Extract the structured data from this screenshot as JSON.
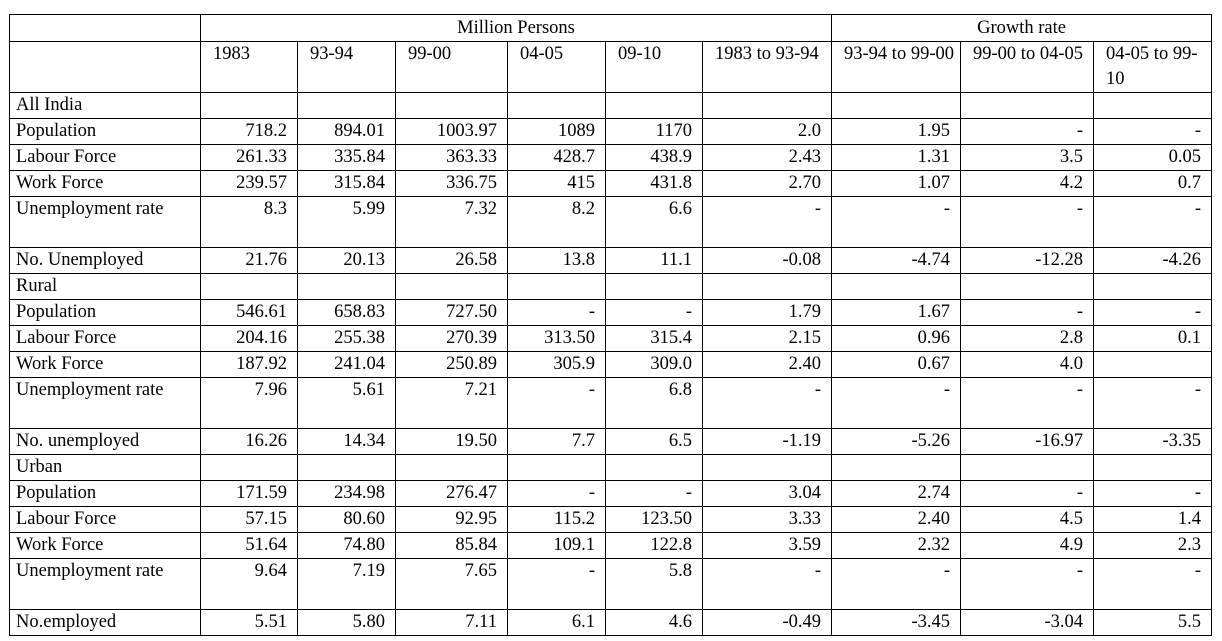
{
  "header": {
    "group1": "Million Persons",
    "group2": "Growth rate",
    "columns": [
      "1983",
      "93-94",
      "99-00",
      "04-05",
      "09-10",
      "1983 to 93-94",
      "93-94 to 99-00",
      "99-00 to 04-05",
      "04-05 to 99-10"
    ]
  },
  "rows": [
    {
      "label": "All India",
      "section": true,
      "values": [
        "",
        "",
        "",
        "",
        "",
        "",
        "",
        "",
        ""
      ]
    },
    {
      "label": "Population",
      "values": [
        "718.2",
        "894.01",
        "1003.97",
        "1089",
        "1170",
        "2.0",
        "1.95",
        "-",
        "-"
      ]
    },
    {
      "label": "Labour Force",
      "values": [
        "261.33",
        "335.84",
        "363.33",
        "428.7",
        "438.9",
        "2.43",
        "1.31",
        "3.5",
        "0.05"
      ]
    },
    {
      "label": "Work Force",
      "values": [
        "239.57",
        "315.84",
        "336.75",
        "415",
        "431.8",
        "2.70",
        "1.07",
        "4.2",
        "0.7"
      ]
    },
    {
      "label": "Unemployment rate",
      "tall": true,
      "values": [
        "8.3",
        "5.99",
        "7.32",
        "8.2",
        "6.6",
        "-",
        "-",
        "-",
        "-"
      ]
    },
    {
      "label": "No. Unemployed",
      "values": [
        "21.76",
        "20.13",
        "26.58",
        "13.8",
        "11.1",
        "-0.08",
        "-4.74",
        "-12.28",
        "-4.26"
      ]
    },
    {
      "label": "Rural",
      "section": true,
      "values": [
        "",
        "",
        "",
        "",
        "",
        "",
        "",
        "",
        ""
      ]
    },
    {
      "label": "Population",
      "values": [
        "546.61",
        "658.83",
        "727.50",
        "-",
        "-",
        "1.79",
        "1.67",
        "-",
        "-"
      ]
    },
    {
      "label": "Labour Force",
      "values": [
        "204.16",
        "255.38",
        "270.39",
        "313.50",
        "315.4",
        "2.15",
        "0.96",
        "2.8",
        "0.1"
      ]
    },
    {
      "label": "Work Force",
      "values": [
        "187.92",
        "241.04",
        "250.89",
        "305.9",
        "309.0",
        "2.40",
        "0.67",
        "4.0",
        ""
      ]
    },
    {
      "label": "Unemployment rate",
      "tall": true,
      "values": [
        "7.96",
        "5.61",
        "7.21",
        "-",
        "6.8",
        "-",
        "-",
        "-",
        "-"
      ]
    },
    {
      "label": "No. unemployed",
      "values": [
        "16.26",
        "14.34",
        "19.50",
        "7.7",
        "6.5",
        "-1.19",
        "-5.26",
        "-16.97",
        "-3.35"
      ]
    },
    {
      "label": "Urban",
      "section": true,
      "values": [
        "",
        "",
        "",
        "",
        "",
        "",
        "",
        "",
        ""
      ]
    },
    {
      "label": "Population",
      "values": [
        "171.59",
        "234.98",
        "276.47",
        "-",
        "-",
        "3.04",
        "2.74",
        "-",
        "-"
      ]
    },
    {
      "label": "Labour Force",
      "values": [
        "57.15",
        "80.60",
        "92.95",
        "115.2",
        "123.50",
        "3.33",
        "2.40",
        "4.5",
        "1.4"
      ]
    },
    {
      "label": "Work Force",
      "values": [
        "51.64",
        "74.80",
        "85.84",
        "109.1",
        "122.8",
        "3.59",
        "2.32",
        "4.9",
        "2.3"
      ]
    },
    {
      "label": "Unemployment rate",
      "tall": true,
      "values": [
        "9.64",
        "7.19",
        "7.65",
        "-",
        "5.8",
        "-",
        "-",
        "-",
        "-"
      ]
    },
    {
      "label": "No.employed",
      "values": [
        "5.51",
        "5.80",
        "7.11",
        "6.1",
        "4.6",
        "-0.49",
        "-3.45",
        "-3.04",
        "5.5"
      ]
    }
  ]
}
